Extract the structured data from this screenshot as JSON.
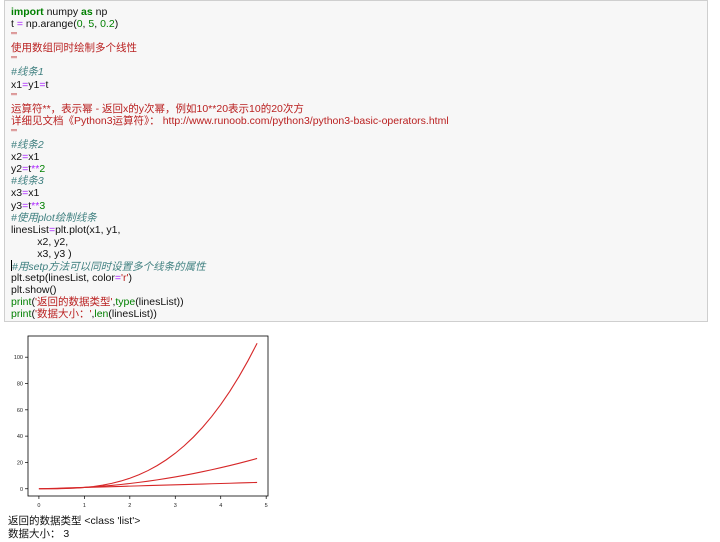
{
  "code_lines": [
    [
      {
        "t": "import",
        "c": "kw"
      },
      {
        "t": " numpy "
      },
      {
        "t": "as",
        "c": "kw"
      },
      {
        "t": " np"
      }
    ],
    [
      {
        "t": "t "
      },
      {
        "t": "=",
        "c": "op"
      },
      {
        "t": " np.arange("
      },
      {
        "t": "0",
        "c": "num"
      },
      {
        "t": ", "
      },
      {
        "t": "5",
        "c": "num"
      },
      {
        "t": ", "
      },
      {
        "t": "0.2",
        "c": "num"
      },
      {
        "t": ")"
      }
    ],
    [
      {
        "t": "'''",
        "c": "str"
      }
    ],
    [
      {
        "t": "使用数组同时绘制多个线性",
        "c": "str"
      }
    ],
    [
      {
        "t": "'''",
        "c": "str"
      }
    ],
    [
      {
        "t": "#线条1",
        "c": "cm"
      }
    ],
    [
      {
        "t": "x1"
      },
      {
        "t": "=",
        "c": "op"
      },
      {
        "t": "y1"
      },
      {
        "t": "=",
        "c": "op"
      },
      {
        "t": "t"
      }
    ],
    [
      {
        "t": "'''",
        "c": "str"
      }
    ],
    [
      {
        "t": "运算符**，表示幂 - 返回x的y次幂，例如10**20表示10的20次方",
        "c": "str"
      }
    ],
    [
      {
        "t": "详细见文档《Python3运算符》： http://www.runoob.com/python3/python3-basic-operators.html",
        "c": "str"
      }
    ],
    [
      {
        "t": "'''",
        "c": "str"
      }
    ],
    [
      {
        "t": "#线条2",
        "c": "cm"
      }
    ],
    [
      {
        "t": "x2"
      },
      {
        "t": "=",
        "c": "op"
      },
      {
        "t": "x1"
      }
    ],
    [
      {
        "t": "y2"
      },
      {
        "t": "=",
        "c": "op"
      },
      {
        "t": "t"
      },
      {
        "t": "**",
        "c": "op"
      },
      {
        "t": "2",
        "c": "num"
      }
    ],
    [
      {
        "t": "#线条3",
        "c": "cm"
      }
    ],
    [
      {
        "t": "x3"
      },
      {
        "t": "=",
        "c": "op"
      },
      {
        "t": "x1"
      }
    ],
    [
      {
        "t": "y3"
      },
      {
        "t": "=",
        "c": "op"
      },
      {
        "t": "t"
      },
      {
        "t": "**",
        "c": "op"
      },
      {
        "t": "3",
        "c": "num"
      }
    ],
    [
      {
        "t": "#使用plot绘制线条",
        "c": "cm"
      }
    ],
    [
      {
        "t": "linesList"
      },
      {
        "t": "=",
        "c": "op"
      },
      {
        "t": "plt.plot(x1, y1,"
      }
    ],
    [
      {
        "t": "         x2, y2,"
      }
    ],
    [
      {
        "t": "         x3, y3 )"
      }
    ],
    [
      {
        "t": "#用setp方法可以同时设置多个线条的属性",
        "c": "cm"
      }
    ],
    [
      {
        "t": "plt.setp(linesList, color"
      },
      {
        "t": "=",
        "c": "op"
      },
      {
        "t": "'r'",
        "c": "str"
      },
      {
        "t": ")"
      }
    ],
    [
      {
        "t": "plt.show()"
      }
    ],
    [
      {
        "t": "print",
        "c": "bi"
      },
      {
        "t": "("
      },
      {
        "t": "'返回的数据类型'",
        "c": "str"
      },
      {
        "t": ","
      },
      {
        "t": "type",
        "c": "bi"
      },
      {
        "t": "(linesList))"
      }
    ],
    [
      {
        "t": "print",
        "c": "bi"
      },
      {
        "t": "("
      },
      {
        "t": "'数据大小：'",
        "c": "str"
      },
      {
        "t": ","
      },
      {
        "t": "len",
        "c": "bi"
      },
      {
        "t": "(linesList))"
      }
    ]
  ],
  "output": {
    "line1": "返回的数据类型 <class 'list'>",
    "line2": "数据大小：  3"
  },
  "colors": {
    "line": "#d62728",
    "frame": "#000000"
  },
  "chart_data": {
    "type": "line",
    "x_start": 0,
    "x_stop": 5,
    "x_step": 0.2,
    "series": [
      {
        "expr": "t"
      },
      {
        "expr": "t**2"
      },
      {
        "expr": "t**3"
      }
    ],
    "xlim": [
      -0.24,
      5.04
    ],
    "ylim": [
      -5.5,
      116.1
    ],
    "xticks": [
      0,
      1,
      2,
      3,
      4,
      5
    ],
    "yticks": [
      0,
      20,
      40,
      60,
      80,
      100
    ],
    "grid": false
  }
}
